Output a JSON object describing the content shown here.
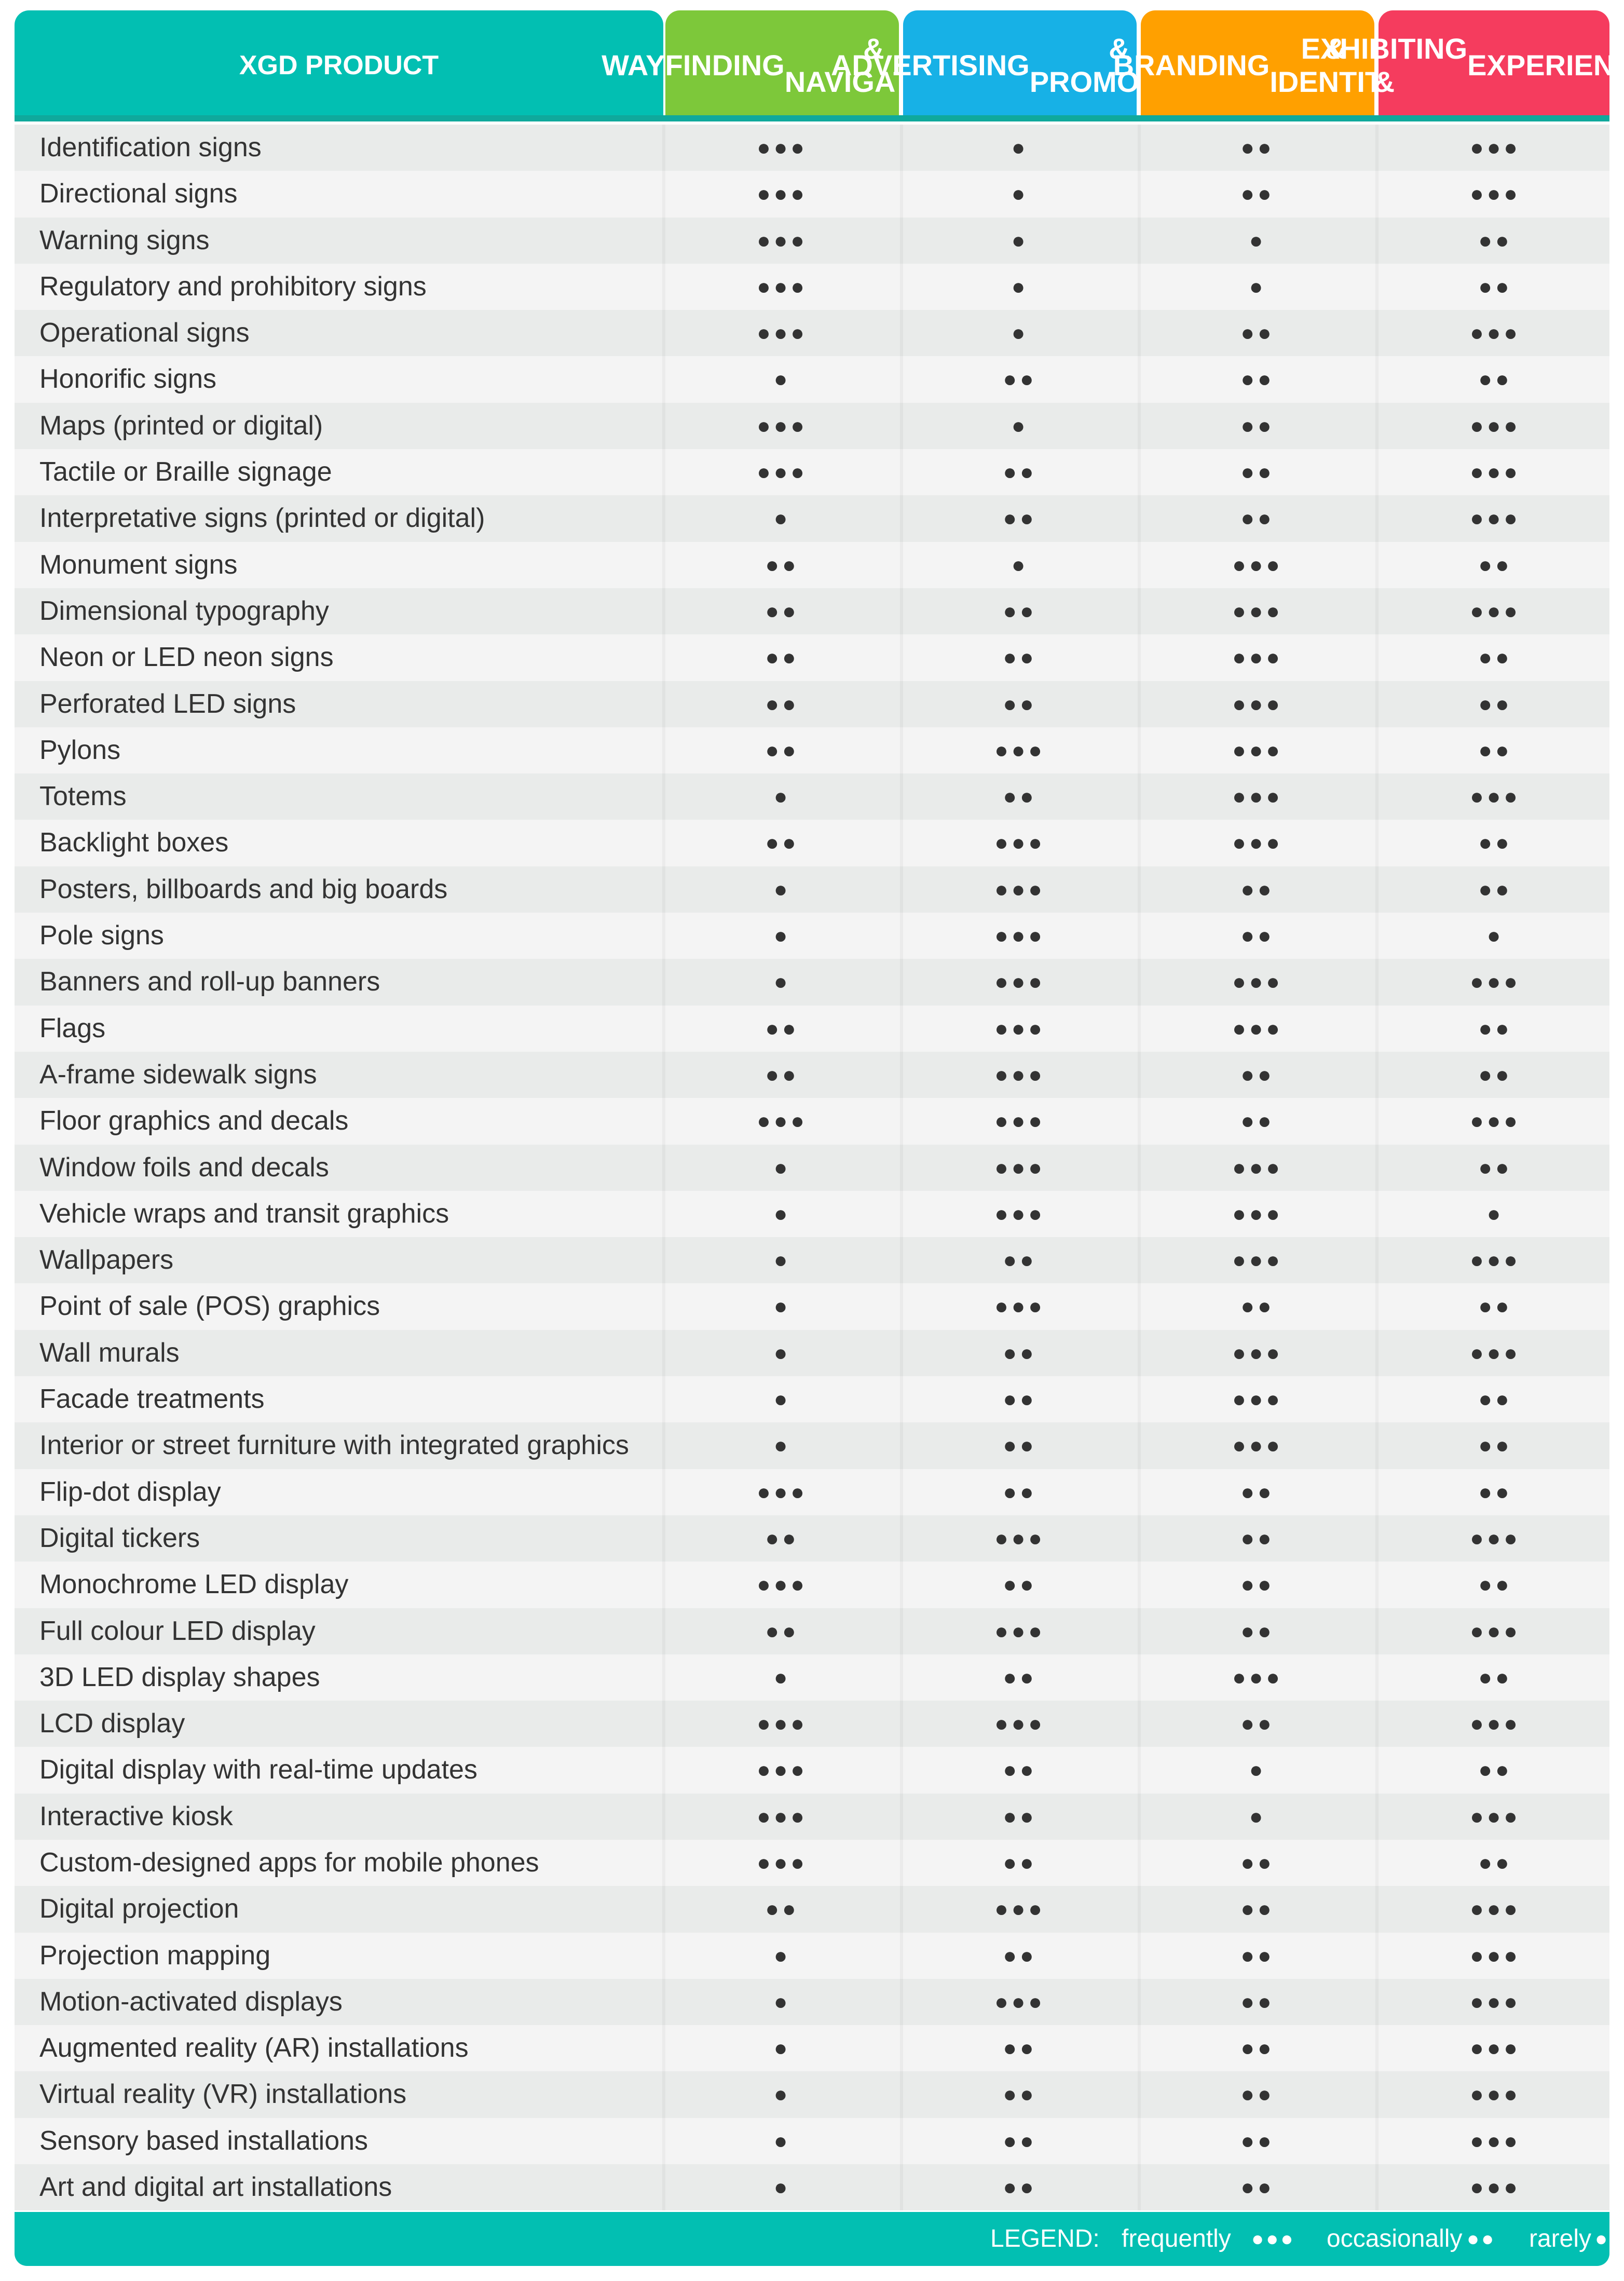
{
  "header": {
    "product_label": "XGD PRODUCT",
    "categories": [
      {
        "line1": "WAYFINDING",
        "line2": "& NAVIGATION",
        "color": "#7dc83a"
      },
      {
        "line1": "ADVERTISING",
        "line2": "& PROMOTION",
        "color": "#17b1e6"
      },
      {
        "line1": "BRANDING",
        "line2": "& IDENTITY",
        "color": "#ffa000"
      },
      {
        "line1": "EXHIBITING &",
        "line2": "EXPERIENCING",
        "color": "#f53c5e"
      }
    ]
  },
  "rows": [
    {
      "label": "Identification signs",
      "values": [
        3,
        1,
        2,
        3
      ]
    },
    {
      "label": "Directional signs",
      "values": [
        3,
        1,
        2,
        3
      ]
    },
    {
      "label": "Warning signs",
      "values": [
        3,
        1,
        1,
        2
      ]
    },
    {
      "label": "Regulatory and prohibitory signs",
      "values": [
        3,
        1,
        1,
        2
      ]
    },
    {
      "label": "Operational signs",
      "values": [
        3,
        1,
        2,
        3
      ]
    },
    {
      "label": "Honorific signs",
      "values": [
        1,
        2,
        2,
        2
      ]
    },
    {
      "label": "Maps (printed or digital)",
      "values": [
        3,
        1,
        2,
        3
      ]
    },
    {
      "label": "Tactile or Braille signage",
      "values": [
        3,
        2,
        2,
        3
      ]
    },
    {
      "label": "Interpretative signs (printed or digital)",
      "values": [
        1,
        2,
        2,
        3
      ]
    },
    {
      "label": "Monument signs",
      "values": [
        2,
        1,
        3,
        2
      ]
    },
    {
      "label": "Dimensional typography",
      "values": [
        2,
        2,
        3,
        3
      ]
    },
    {
      "label": "Neon or LED neon signs",
      "values": [
        2,
        2,
        3,
        2
      ]
    },
    {
      "label": "Perforated LED signs",
      "values": [
        2,
        2,
        3,
        2
      ]
    },
    {
      "label": "Pylons",
      "values": [
        2,
        3,
        3,
        2
      ]
    },
    {
      "label": "Totems",
      "values": [
        1,
        2,
        3,
        3
      ]
    },
    {
      "label": "Backlight boxes",
      "values": [
        2,
        3,
        3,
        2
      ]
    },
    {
      "label": "Posters, billboards and big boards",
      "values": [
        1,
        3,
        2,
        2
      ]
    },
    {
      "label": "Pole signs",
      "values": [
        1,
        3,
        2,
        1
      ]
    },
    {
      "label": "Banners and roll-up banners",
      "values": [
        1,
        3,
        3,
        3
      ]
    },
    {
      "label": "Flags",
      "values": [
        2,
        3,
        3,
        2
      ]
    },
    {
      "label": "A-frame sidewalk signs",
      "values": [
        2,
        3,
        2,
        2
      ]
    },
    {
      "label": "Floor graphics and decals",
      "values": [
        3,
        3,
        2,
        3
      ]
    },
    {
      "label": "Window foils and decals",
      "values": [
        1,
        3,
        3,
        2
      ]
    },
    {
      "label": "Vehicle wraps and transit graphics",
      "values": [
        1,
        3,
        3,
        1
      ]
    },
    {
      "label": "Wallpapers",
      "values": [
        1,
        2,
        3,
        3
      ]
    },
    {
      "label": "Point of sale (POS) graphics",
      "values": [
        1,
        3,
        2,
        2
      ]
    },
    {
      "label": "Wall murals",
      "values": [
        1,
        2,
        3,
        3
      ]
    },
    {
      "label": "Facade treatments",
      "values": [
        1,
        2,
        3,
        2
      ]
    },
    {
      "label": "Interior or street furniture with integrated graphics",
      "values": [
        1,
        2,
        3,
        2
      ]
    },
    {
      "label": "Flip-dot display",
      "values": [
        3,
        2,
        2,
        2
      ]
    },
    {
      "label": "Digital tickers",
      "values": [
        2,
        3,
        2,
        3
      ]
    },
    {
      "label": "Monochrome LED display",
      "values": [
        3,
        2,
        2,
        2
      ]
    },
    {
      "label": "Full colour LED display",
      "values": [
        2,
        3,
        2,
        3
      ]
    },
    {
      "label": "3D LED display shapes",
      "values": [
        1,
        2,
        3,
        2
      ]
    },
    {
      "label": "LCD display",
      "values": [
        3,
        3,
        2,
        3
      ]
    },
    {
      "label": "Digital display with real-time updates",
      "values": [
        3,
        2,
        1,
        2
      ]
    },
    {
      "label": "Interactive kiosk",
      "values": [
        3,
        2,
        1,
        3
      ]
    },
    {
      "label": "Custom-designed apps for mobile phones",
      "values": [
        3,
        2,
        2,
        2
      ]
    },
    {
      "label": "Digital projection",
      "values": [
        2,
        3,
        2,
        3
      ]
    },
    {
      "label": "Projection mapping",
      "values": [
        1,
        2,
        2,
        3
      ]
    },
    {
      "label": "Motion-activated displays",
      "values": [
        1,
        3,
        2,
        3
      ]
    },
    {
      "label": "Augmented reality (AR) installations",
      "values": [
        1,
        2,
        2,
        3
      ]
    },
    {
      "label": "Virtual reality (VR) installations",
      "values": [
        1,
        2,
        2,
        3
      ]
    },
    {
      "label": "Sensory based installations",
      "values": [
        1,
        2,
        2,
        3
      ]
    },
    {
      "label": "Art and digital art installations",
      "values": [
        1,
        2,
        2,
        3
      ]
    }
  ],
  "legend": {
    "title": "LEGEND:",
    "frequently": "frequently",
    "frequently_dots": "●●●",
    "occasionally": "occasionally",
    "occasionally_dots": "●●",
    "rarely": "rarely",
    "rarely_dots": "●"
  },
  "colors": {
    "teal": "#02bfb2",
    "text": "#333333"
  }
}
